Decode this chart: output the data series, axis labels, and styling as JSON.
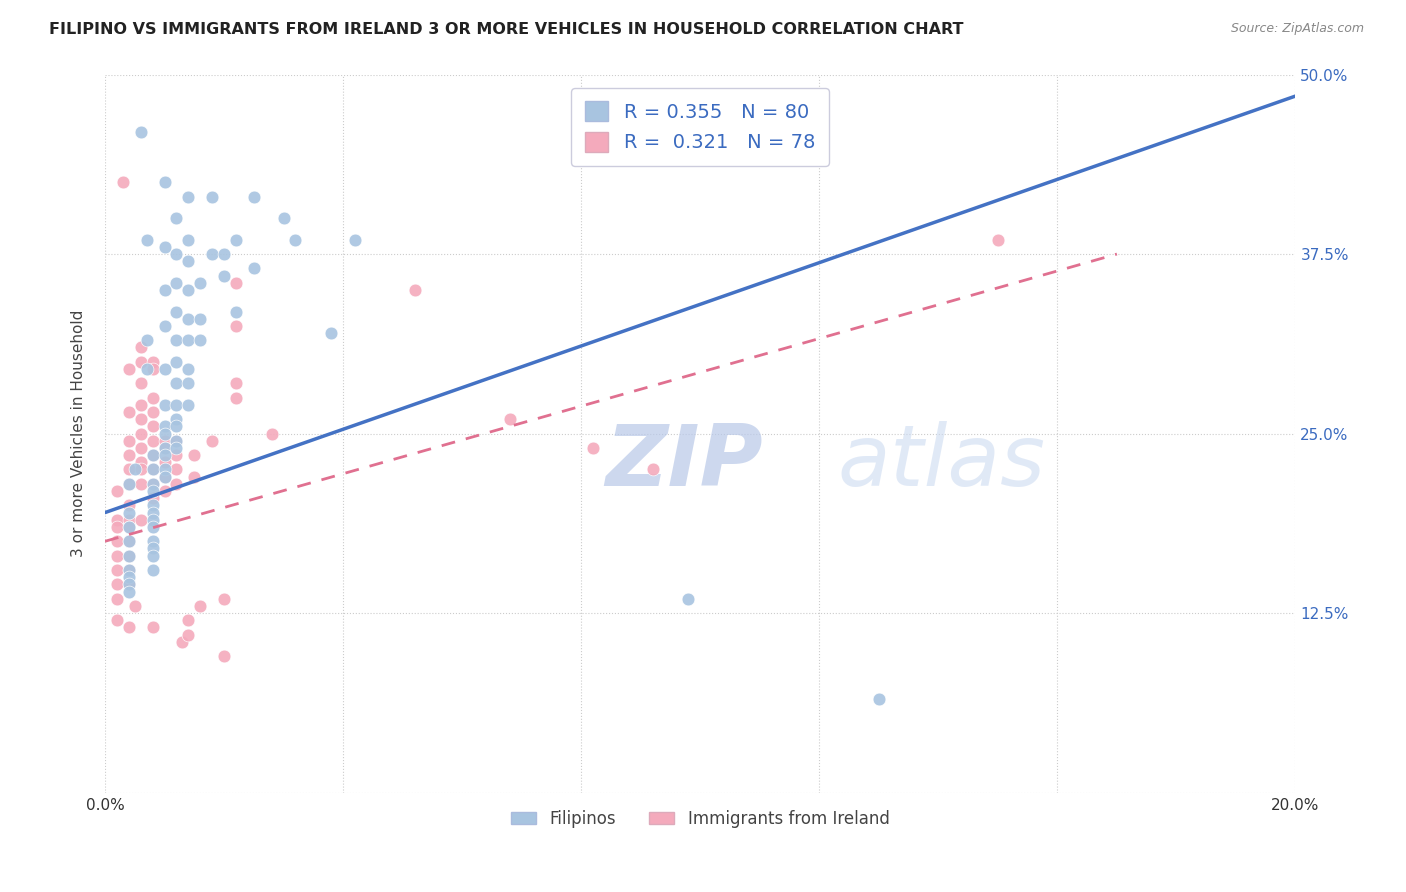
{
  "title": "FILIPINO VS IMMIGRANTS FROM IRELAND 3 OR MORE VEHICLES IN HOUSEHOLD CORRELATION CHART",
  "source": "Source: ZipAtlas.com",
  "ylabel": "3 or more Vehicles in Household",
  "xlabel_blue": "Filipinos",
  "xlabel_pink": "Immigrants from Ireland",
  "x_min": 0.0,
  "x_max": 0.2,
  "y_min": 0.0,
  "y_max": 0.5,
  "blue_R": 0.355,
  "blue_N": 80,
  "pink_R": 0.321,
  "pink_N": 78,
  "blue_color": "#A8C4E0",
  "pink_color": "#F4AABC",
  "blue_line_color": "#4472C4",
  "pink_line_color": "#E07090",
  "blue_line_x": [
    0.0,
    0.2
  ],
  "blue_line_y": [
    0.195,
    0.485
  ],
  "pink_line_x": [
    0.0,
    0.17
  ],
  "pink_line_y": [
    0.175,
    0.375
  ],
  "watermark_zip": "ZIP",
  "watermark_atlas": "atlas",
  "blue_scatter": [
    [
      0.004,
      0.215
    ],
    [
      0.004,
      0.195
    ],
    [
      0.004,
      0.185
    ],
    [
      0.004,
      0.175
    ],
    [
      0.004,
      0.165
    ],
    [
      0.004,
      0.155
    ],
    [
      0.004,
      0.15
    ],
    [
      0.004,
      0.145
    ],
    [
      0.004,
      0.14
    ],
    [
      0.005,
      0.225
    ],
    [
      0.006,
      0.46
    ],
    [
      0.007,
      0.385
    ],
    [
      0.007,
      0.315
    ],
    [
      0.007,
      0.295
    ],
    [
      0.008,
      0.235
    ],
    [
      0.008,
      0.225
    ],
    [
      0.008,
      0.215
    ],
    [
      0.008,
      0.21
    ],
    [
      0.008,
      0.2
    ],
    [
      0.008,
      0.195
    ],
    [
      0.008,
      0.19
    ],
    [
      0.008,
      0.185
    ],
    [
      0.008,
      0.175
    ],
    [
      0.008,
      0.17
    ],
    [
      0.008,
      0.165
    ],
    [
      0.008,
      0.155
    ],
    [
      0.01,
      0.425
    ],
    [
      0.01,
      0.38
    ],
    [
      0.01,
      0.35
    ],
    [
      0.01,
      0.325
    ],
    [
      0.01,
      0.295
    ],
    [
      0.01,
      0.27
    ],
    [
      0.01,
      0.255
    ],
    [
      0.01,
      0.25
    ],
    [
      0.01,
      0.24
    ],
    [
      0.01,
      0.235
    ],
    [
      0.01,
      0.225
    ],
    [
      0.01,
      0.22
    ],
    [
      0.012,
      0.4
    ],
    [
      0.012,
      0.375
    ],
    [
      0.012,
      0.355
    ],
    [
      0.012,
      0.335
    ],
    [
      0.012,
      0.315
    ],
    [
      0.012,
      0.3
    ],
    [
      0.012,
      0.285
    ],
    [
      0.012,
      0.27
    ],
    [
      0.012,
      0.26
    ],
    [
      0.012,
      0.255
    ],
    [
      0.012,
      0.245
    ],
    [
      0.012,
      0.24
    ],
    [
      0.014,
      0.415
    ],
    [
      0.014,
      0.385
    ],
    [
      0.014,
      0.37
    ],
    [
      0.014,
      0.35
    ],
    [
      0.014,
      0.33
    ],
    [
      0.014,
      0.315
    ],
    [
      0.014,
      0.295
    ],
    [
      0.014,
      0.285
    ],
    [
      0.014,
      0.27
    ],
    [
      0.016,
      0.355
    ],
    [
      0.016,
      0.33
    ],
    [
      0.016,
      0.315
    ],
    [
      0.018,
      0.415
    ],
    [
      0.018,
      0.375
    ],
    [
      0.02,
      0.375
    ],
    [
      0.02,
      0.36
    ],
    [
      0.022,
      0.385
    ],
    [
      0.022,
      0.335
    ],
    [
      0.025,
      0.415
    ],
    [
      0.025,
      0.365
    ],
    [
      0.03,
      0.4
    ],
    [
      0.032,
      0.385
    ],
    [
      0.038,
      0.32
    ],
    [
      0.042,
      0.385
    ],
    [
      0.098,
      0.135
    ],
    [
      0.13,
      0.065
    ]
  ],
  "pink_scatter": [
    [
      0.002,
      0.21
    ],
    [
      0.002,
      0.19
    ],
    [
      0.002,
      0.185
    ],
    [
      0.002,
      0.175
    ],
    [
      0.002,
      0.165
    ],
    [
      0.002,
      0.155
    ],
    [
      0.002,
      0.145
    ],
    [
      0.002,
      0.135
    ],
    [
      0.002,
      0.12
    ],
    [
      0.003,
      0.425
    ],
    [
      0.004,
      0.295
    ],
    [
      0.004,
      0.265
    ],
    [
      0.004,
      0.245
    ],
    [
      0.004,
      0.235
    ],
    [
      0.004,
      0.225
    ],
    [
      0.004,
      0.215
    ],
    [
      0.004,
      0.2
    ],
    [
      0.004,
      0.19
    ],
    [
      0.004,
      0.185
    ],
    [
      0.004,
      0.175
    ],
    [
      0.004,
      0.165
    ],
    [
      0.004,
      0.155
    ],
    [
      0.004,
      0.145
    ],
    [
      0.004,
      0.115
    ],
    [
      0.005,
      0.13
    ],
    [
      0.006,
      0.31
    ],
    [
      0.006,
      0.3
    ],
    [
      0.006,
      0.285
    ],
    [
      0.006,
      0.27
    ],
    [
      0.006,
      0.26
    ],
    [
      0.006,
      0.25
    ],
    [
      0.006,
      0.24
    ],
    [
      0.006,
      0.23
    ],
    [
      0.006,
      0.225
    ],
    [
      0.006,
      0.215
    ],
    [
      0.006,
      0.19
    ],
    [
      0.008,
      0.3
    ],
    [
      0.008,
      0.295
    ],
    [
      0.008,
      0.275
    ],
    [
      0.008,
      0.265
    ],
    [
      0.008,
      0.255
    ],
    [
      0.008,
      0.245
    ],
    [
      0.008,
      0.235
    ],
    [
      0.008,
      0.225
    ],
    [
      0.008,
      0.215
    ],
    [
      0.008,
      0.205
    ],
    [
      0.008,
      0.115
    ],
    [
      0.01,
      0.245
    ],
    [
      0.01,
      0.24
    ],
    [
      0.01,
      0.23
    ],
    [
      0.01,
      0.22
    ],
    [
      0.01,
      0.21
    ],
    [
      0.012,
      0.245
    ],
    [
      0.012,
      0.235
    ],
    [
      0.012,
      0.225
    ],
    [
      0.012,
      0.215
    ],
    [
      0.013,
      0.105
    ],
    [
      0.014,
      0.12
    ],
    [
      0.014,
      0.11
    ],
    [
      0.015,
      0.235
    ],
    [
      0.015,
      0.22
    ],
    [
      0.016,
      0.13
    ],
    [
      0.018,
      0.245
    ],
    [
      0.02,
      0.135
    ],
    [
      0.02,
      0.095
    ],
    [
      0.022,
      0.355
    ],
    [
      0.022,
      0.325
    ],
    [
      0.022,
      0.285
    ],
    [
      0.022,
      0.275
    ],
    [
      0.028,
      0.25
    ],
    [
      0.052,
      0.35
    ],
    [
      0.068,
      0.26
    ],
    [
      0.082,
      0.24
    ],
    [
      0.092,
      0.225
    ],
    [
      0.15,
      0.385
    ]
  ]
}
